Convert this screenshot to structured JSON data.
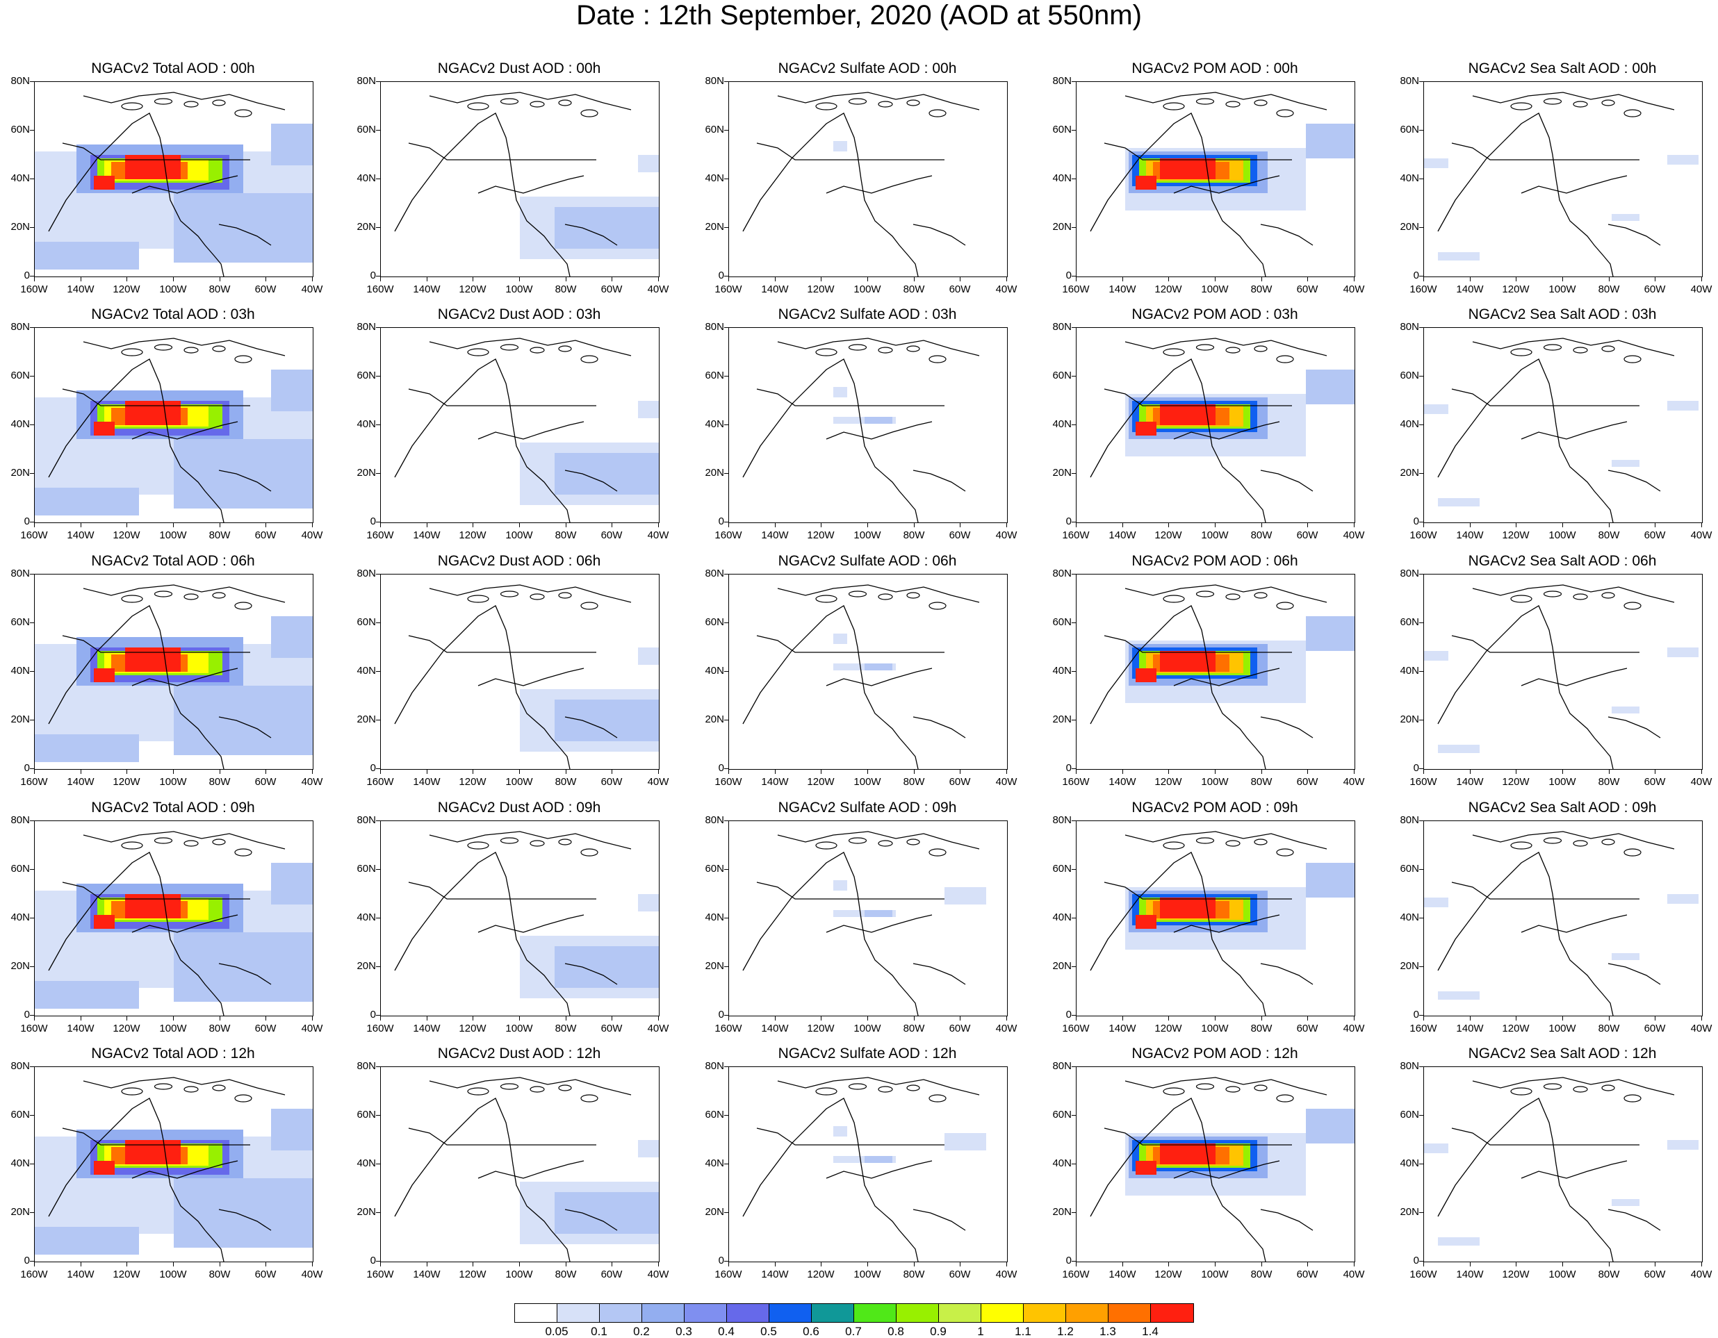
{
  "title": "Date : 12th September, 2020 (AOD at 550nm)",
  "panel_titles": [
    [
      "NGACv2 Total AOD : 00h",
      "NGACv2 Dust AOD : 00h",
      "NGACv2 Sulfate AOD : 00h",
      "NGACv2 POM AOD : 00h",
      "NGACv2 Sea Salt AOD : 00h"
    ],
    [
      "NGACv2 Total AOD : 03h",
      "NGACv2 Dust AOD : 03h",
      "NGACv2 Sulfate AOD : 03h",
      "NGACv2 POM AOD : 03h",
      "NGACv2 Sea Salt AOD : 03h"
    ],
    [
      "NGACv2 Total AOD : 06h",
      "NGACv2 Dust AOD : 06h",
      "NGACv2 Sulfate AOD : 06h",
      "NGACv2 POM AOD : 06h",
      "NGACv2 Sea Salt AOD : 06h"
    ],
    [
      "NGACv2 Total AOD : 09h",
      "NGACv2 Dust AOD : 09h",
      "NGACv2 Sulfate AOD : 09h",
      "NGACv2 POM AOD : 09h",
      "NGACv2 Sea Salt  AOD : 09h"
    ],
    [
      "NGACv2 Total AOD  : 12h",
      "NGACv2 Dust AOD : 12h",
      "NGACv2 Sulfate AOD : 12h",
      "NGACv2 POM  AOD : 12h",
      "NGACv2 Sea Salt  AOD : 12h"
    ]
  ],
  "lat_labels": [
    "80N",
    "60N",
    "40N",
    "20N",
    "0"
  ],
  "lon_labels": [
    "160W",
    "140W",
    "120W",
    "100W",
    "80W",
    "60W",
    "40W"
  ],
  "colorbar": {
    "colors": [
      "#ffffff",
      "#d7e1f8",
      "#b4c7f4",
      "#93aef0",
      "#7f8ff0",
      "#6669ea",
      "#1060f0",
      "#109898",
      "#50e818",
      "#98f000",
      "#c8f048",
      "#ffff00",
      "#ffc400",
      "#ffa000",
      "#ff7000",
      "#ff2010"
    ],
    "labels": [
      "0.05",
      "0.1",
      "0.2",
      "0.3",
      "0.4",
      "0.5",
      "0.6",
      "0.7",
      "0.8",
      "0.9",
      "1",
      "1.1",
      "1.2",
      "1.3",
      "1.4"
    ]
  }
}
